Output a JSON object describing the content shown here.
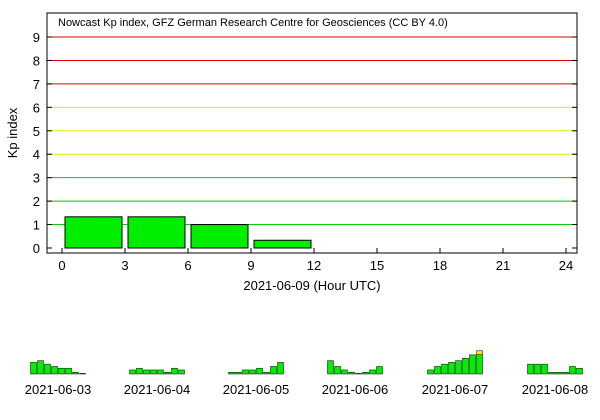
{
  "chart_data": {
    "type": "bar",
    "title": "Nowcast Kp index, GFZ German Research Centre for Geosciences (CC BY 4.0)",
    "ylabel": "Kp index",
    "xlabel": "2021-06-09 (Hour UTC)",
    "ylim": [
      0,
      9
    ],
    "xlim": [
      0,
      24
    ],
    "y_ticks": [
      "0",
      "1",
      "2",
      "3",
      "4",
      "5",
      "6",
      "7",
      "8",
      "9"
    ],
    "x_ticks": [
      "0",
      "3",
      "6",
      "9",
      "12",
      "15",
      "18",
      "21",
      "24"
    ],
    "bars": [
      {
        "start": 0,
        "end": 3,
        "value": 1.33
      },
      {
        "start": 3,
        "end": 6,
        "value": 1.33
      },
      {
        "start": 6,
        "end": 9,
        "value": 1.0
      },
      {
        "start": 9,
        "end": 12,
        "value": 0.33
      }
    ],
    "grid_levels": [
      {
        "value": 1,
        "color": "#00cc00"
      },
      {
        "value": 2,
        "color": "#00cc00"
      },
      {
        "value": 3,
        "color": "#00cc00"
      },
      {
        "value": 4,
        "color": "#e6e600"
      },
      {
        "value": 5,
        "color": "#e6e600"
      },
      {
        "value": 6,
        "color": "#e6e600"
      },
      {
        "value": 7,
        "color": "#e60000"
      },
      {
        "value": 8,
        "color": "#e60000"
      },
      {
        "value": 9,
        "color": "#e60000"
      }
    ],
    "bar_color": "#00ee00",
    "bar_color_elevated": "#f0f000",
    "history": [
      {
        "date": "2021-06-03",
        "values": [
          2.0,
          2.3,
          1.7,
          1.3,
          1.0,
          1.0,
          0.3,
          0.0
        ]
      },
      {
        "date": "2021-06-04",
        "values": [
          0.7,
          1.0,
          0.7,
          0.7,
          0.7,
          0.3,
          1.0,
          0.7
        ]
      },
      {
        "date": "2021-06-05",
        "values": [
          0.3,
          0.3,
          0.7,
          0.7,
          1.0,
          0.3,
          1.3,
          2.0
        ]
      },
      {
        "date": "2021-06-06",
        "values": [
          2.3,
          1.3,
          0.7,
          0.3,
          0.0,
          0.3,
          0.7,
          1.3
        ]
      },
      {
        "date": "2021-06-07",
        "values": [
          0.7,
          1.3,
          1.7,
          2.0,
          2.3,
          2.7,
          3.3,
          4.0
        ]
      },
      {
        "date": "2021-06-08",
        "values": [
          1.7,
          1.7,
          1.7,
          0.3,
          0.3,
          0.3,
          1.3,
          1.0
        ]
      }
    ]
  }
}
